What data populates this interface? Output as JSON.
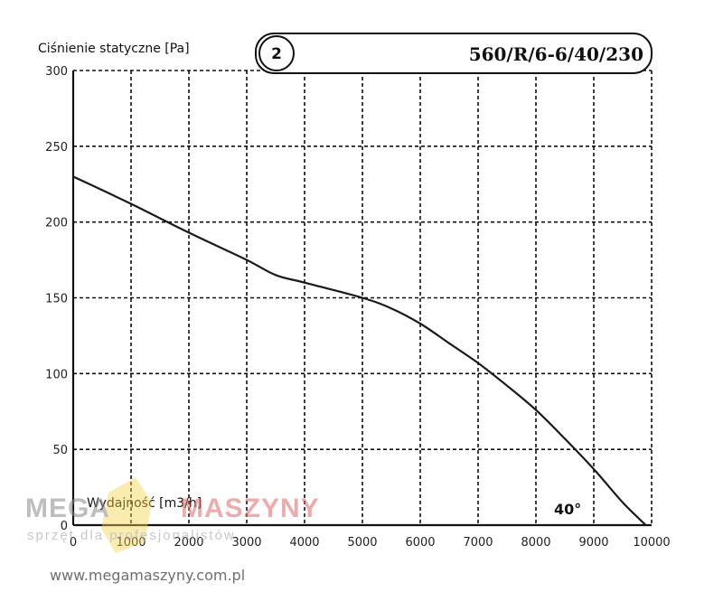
{
  "chart_data": {
    "type": "line",
    "ylabel": "Ciśnienie statyczne [Pa]",
    "xlabel": "Wydajność [m3/h]",
    "model": "560/R/6-6/40/230",
    "curve_number": "2",
    "annotation": "40°",
    "xlim": [
      0,
      10000
    ],
    "ylim": [
      0,
      300
    ],
    "xticks": [
      "0",
      "1000",
      "2000",
      "3000",
      "4000",
      "5000",
      "6000",
      "7000",
      "8000",
      "9000",
      "10000"
    ],
    "yticks": [
      "0",
      "50",
      "100",
      "150",
      "200",
      "250",
      "300"
    ],
    "grid": true,
    "series": [
      {
        "x": [
          0,
          1000,
          2000,
          3000,
          3500,
          4000,
          5000,
          5500,
          6000,
          6500,
          7000,
          7500,
          8000,
          8500,
          9000,
          9500,
          9900
        ],
        "y": [
          230,
          212,
          193,
          175,
          165,
          160,
          150,
          143,
          133,
          120,
          107,
          92,
          76,
          57,
          37,
          15,
          0
        ]
      }
    ]
  },
  "watermark": {
    "brand_left": "MEGA",
    "brand_right": "MASZYNY",
    "tagline": "sprzęt dla profesjonalistów",
    "url": "www.megamaszyny.com.pl"
  }
}
